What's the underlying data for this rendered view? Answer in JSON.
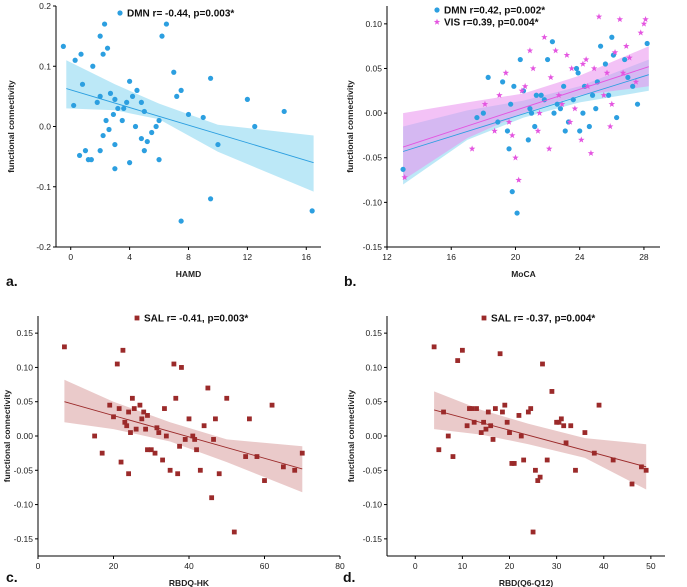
{
  "colors": {
    "dmn": "#2c9fe0",
    "dmn_band": "#8fd8f2",
    "vis": "#e455e0",
    "vis_band": "#ea8fee",
    "sal": "#9b2a2a",
    "sal_band": "#dca7a7"
  },
  "chart_data": [
    {
      "type": "scatter",
      "panel_label": "a.",
      "xlabel": "HAMD",
      "ylabel": "functional connectivity",
      "xlim": [
        -1,
        17
      ],
      "ylim": [
        -0.2,
        0.2
      ],
      "xticks": [
        0,
        4,
        8,
        12,
        16
      ],
      "yticks": [
        -0.2,
        -0.1,
        0.0,
        0.1,
        0.2
      ],
      "ytick_labels": [
        "-0.2",
        "-0.1",
        "0.0",
        "0.1",
        "0.2"
      ],
      "series": [
        {
          "name": "DMN",
          "legend": "DMN r= -0.44, p=0.003*",
          "marker": "circle",
          "color_key": "dmn",
          "fit": {
            "x": [
              -0.3,
              16.5
            ],
            "y": [
              0.063,
              -0.06
            ]
          },
          "band": {
            "upper": [
              [
                -0.3,
                0.11
              ],
              [
                3,
                0.07
              ],
              [
                6,
                0.038
              ],
              [
                10,
                0.003
              ],
              [
                16.5,
                -0.015
              ]
            ],
            "lower": [
              [
                -0.3,
                0.03
              ],
              [
                3,
                0.027
              ],
              [
                6,
                0.012
              ],
              [
                10,
                -0.042
              ],
              [
                16.5,
                -0.108
              ]
            ]
          },
          "x": [
            -0.5,
            0.3,
            0.7,
            0.8,
            1.5,
            0.2,
            1.0,
            1.4,
            0.6,
            1.2,
            2.0,
            2.2,
            2.3,
            2.0,
            1.8,
            2.5,
            2.7,
            3.0,
            3.2,
            2.4,
            2.6,
            2.9,
            3.5,
            3.8,
            4.0,
            3.0,
            3.6,
            4.2,
            4.5,
            4.8,
            5.0,
            4.4,
            5.5,
            5.8,
            6.0,
            5.2,
            6.2,
            6.5,
            7.0,
            7.2,
            7.5,
            8.0,
            9.0,
            9.5,
            10.0,
            12.0,
            12.5,
            14.5,
            16.4,
            2.2,
            2.0,
            3.0,
            4.0,
            4.8,
            5.0,
            6.0,
            7.5,
            9.5
          ],
          "y": [
            0.133,
            0.11,
            0.12,
            0.07,
            0.1,
            0.035,
            -0.04,
            -0.055,
            -0.048,
            -0.055,
            0.15,
            0.12,
            0.17,
            0.05,
            0.04,
            0.13,
            0.055,
            0.045,
            0.03,
            0.01,
            -0.005,
            0.02,
            0.01,
            0.04,
            0.075,
            -0.03,
            0.03,
            0.05,
            0.06,
            0.04,
            0.025,
            0.0,
            -0.01,
            0.0,
            0.01,
            -0.025,
            0.15,
            0.17,
            0.09,
            0.05,
            0.06,
            0.02,
            0.015,
            0.08,
            -0.03,
            0.045,
            0.0,
            0.025,
            -0.14,
            -0.015,
            -0.04,
            -0.07,
            -0.06,
            -0.02,
            -0.04,
            -0.055,
            -0.157,
            -0.12
          ]
        }
      ]
    },
    {
      "type": "scatter",
      "panel_label": "b.",
      "xlabel": "MoCA",
      "ylabel": "functional connectivity",
      "xlim": [
        12,
        29
      ],
      "ylim": [
        -0.15,
        0.12
      ],
      "xticks": [
        12,
        16,
        20,
        24,
        28
      ],
      "yticks": [
        -0.15,
        -0.1,
        -0.05,
        0.0,
        0.05,
        0.1
      ],
      "ytick_labels": [
        "-0.15",
        "-0.10",
        "-0.05",
        "0.00",
        "0.05",
        "0.10"
      ],
      "series": [
        {
          "name": "DMN",
          "legend": "DMN r=0.42, p=0.002*",
          "marker": "circle",
          "color_key": "dmn",
          "fit": {
            "x": [
              13,
              28.3
            ],
            "y": [
              -0.043,
              0.043
            ]
          },
          "band": {
            "upper": [
              [
                13,
                -0.015
              ],
              [
                17,
                0.003
              ],
              [
                20.5,
                0.014
              ],
              [
                24,
                0.03
              ],
              [
                28.3,
                0.06
              ]
            ],
            "lower": [
              [
                13,
                -0.08
              ],
              [
                17,
                -0.03
              ],
              [
                20.5,
                -0.005
              ],
              [
                24,
                0.012
              ],
              [
                28.3,
                0.025
              ]
            ]
          },
          "x": [
            13.0,
            17.6,
            18.0,
            18.3,
            18.9,
            19.2,
            19.5,
            19.7,
            19.8,
            20.1,
            20.3,
            20.5,
            20.9,
            21.0,
            21.2,
            21.6,
            21.8,
            22.0,
            22.3,
            22.6,
            22.8,
            23.0,
            23.3,
            23.6,
            23.8,
            24.0,
            24.2,
            24.3,
            24.6,
            24.8,
            25.1,
            25.3,
            25.6,
            25.8,
            26.0,
            26.3,
            26.8,
            27.0,
            27.6,
            28.2,
            19.6,
            19.9,
            20.8,
            21.3,
            22.4,
            23.1,
            23.9,
            25.0,
            26.1,
            27.3
          ],
          "y": [
            -0.063,
            -0.005,
            0.0,
            0.04,
            -0.01,
            0.035,
            -0.02,
            0.01,
            -0.088,
            -0.112,
            0.06,
            0.025,
            0.005,
            0.0,
            -0.015,
            0.02,
            0.015,
            0.06,
            0.08,
            0.01,
            0.005,
            0.03,
            -0.01,
            0.015,
            0.05,
            -0.02,
            0.0,
            0.03,
            -0.015,
            0.02,
            0.035,
            0.075,
            0.055,
            0.02,
            0.085,
            -0.005,
            0.06,
            0.04,
            0.01,
            0.078,
            -0.04,
            0.03,
            -0.03,
            0.02,
            0.0,
            -0.02,
            0.045,
            0.005,
            0.065,
            0.03
          ]
        },
        {
          "name": "VIS",
          "legend": "VIS    r=0.39, p=0.004*",
          "marker": "star",
          "color_key": "vis",
          "fit": {
            "x": [
              13,
              28.3
            ],
            "y": [
              -0.038,
              0.052
            ]
          },
          "band": {
            "upper": [
              [
                13,
                0.0
              ],
              [
                17,
                0.012
              ],
              [
                20.5,
                0.022
              ],
              [
                24,
                0.042
              ],
              [
                28.3,
                0.075
              ]
            ],
            "lower": [
              [
                13,
                -0.075
              ],
              [
                17,
                -0.028
              ],
              [
                20.5,
                0.0
              ],
              [
                24,
                0.02
              ],
              [
                28.3,
                0.03
              ]
            ]
          },
          "x": [
            13.1,
            17.3,
            18.1,
            18.7,
            19.0,
            19.4,
            19.6,
            20.0,
            20.2,
            20.6,
            20.9,
            21.1,
            21.5,
            21.8,
            22.1,
            22.5,
            22.7,
            22.9,
            23.2,
            23.5,
            23.7,
            24.1,
            24.4,
            24.5,
            24.7,
            24.9,
            25.2,
            25.5,
            25.7,
            26.0,
            26.2,
            26.5,
            26.9,
            27.1,
            27.5,
            27.8,
            28.0,
            28.1,
            19.8,
            20.4,
            21.4,
            22.2,
            23.4,
            24.2,
            25.9,
            26.7
          ],
          "y": [
            -0.072,
            -0.04,
            0.01,
            -0.02,
            0.02,
            0.045,
            -0.01,
            -0.05,
            -0.075,
            0.03,
            0.07,
            0.05,
            0.0,
            0.085,
            -0.04,
            0.07,
            0.02,
            0.01,
            0.065,
            0.05,
            0.005,
            -0.03,
            0.06,
            0.03,
            -0.045,
            0.05,
            0.108,
            0.02,
            0.045,
            0.01,
            0.068,
            0.105,
            0.075,
            0.062,
            0.035,
            0.09,
            0.1,
            0.105,
            -0.025,
            0.025,
            -0.02,
            0.04,
            -0.01,
            0.055,
            -0.015,
            0.045
          ]
        }
      ]
    },
    {
      "type": "scatter",
      "panel_label": "c.",
      "xlabel": "RBDQ-HK",
      "ylabel": "functional connectivity",
      "xlim": [
        0,
        80
      ],
      "ylim": [
        -0.175,
        0.175
      ],
      "xticks": [
        0,
        20,
        40,
        60,
        80
      ],
      "yticks": [
        -0.15,
        -0.1,
        -0.05,
        0.0,
        0.05,
        0.1,
        0.15
      ],
      "ytick_labels": [
        "-0.15",
        "-0.10",
        "-0.05",
        "0.00",
        "0.05",
        "0.10",
        "0.15"
      ],
      "series": [
        {
          "name": "SAL",
          "legend": "SAL r= -0.41, p=0.003*",
          "marker": "square",
          "color_key": "sal",
          "fit": {
            "x": [
              7,
              70
            ],
            "y": [
              0.05,
              -0.048
            ]
          },
          "band": {
            "upper": [
              [
                7,
                0.082
              ],
              [
                20,
                0.05
              ],
              [
                35,
                0.02
              ],
              [
                50,
                -0.005
              ],
              [
                70,
                -0.015
              ]
            ],
            "lower": [
              [
                7,
                0.02
              ],
              [
                20,
                0.01
              ],
              [
                35,
                -0.008
              ],
              [
                50,
                -0.038
              ],
              [
                70,
                -0.082
              ]
            ]
          },
          "x": [
            7.0,
            15.0,
            17.0,
            19.0,
            20.0,
            21.0,
            21.5,
            22.0,
            22.5,
            23.0,
            23.5,
            24.0,
            24.5,
            25.0,
            25.5,
            26.0,
            27.0,
            27.5,
            28.0,
            28.5,
            29.0,
            30.0,
            31.0,
            31.5,
            32.0,
            33.0,
            34.0,
            35.0,
            36.0,
            36.5,
            37.0,
            37.5,
            38.0,
            39.0,
            40.0,
            41.0,
            42.0,
            43.0,
            44.0,
            45.0,
            46.0,
            46.5,
            47.0,
            48.0,
            50.0,
            52.0,
            55.0,
            56.0,
            58.0,
            60.0,
            62.0,
            65.0,
            68.0,
            70.0,
            24.0,
            29.0,
            33.5,
            41.5
          ],
          "y": [
            0.13,
            0.0,
            -0.025,
            0.045,
            0.028,
            0.105,
            0.04,
            -0.038,
            0.125,
            0.02,
            0.015,
            0.035,
            0.005,
            0.055,
            0.04,
            0.01,
            0.045,
            0.025,
            0.035,
            0.01,
            0.03,
            -0.02,
            -0.025,
            0.012,
            0.005,
            -0.035,
            0.0,
            -0.05,
            0.105,
            0.055,
            -0.055,
            -0.015,
            0.1,
            -0.005,
            0.025,
            0.0,
            -0.02,
            -0.05,
            0.015,
            0.07,
            -0.09,
            -0.005,
            0.025,
            -0.055,
            0.055,
            -0.14,
            -0.03,
            0.025,
            -0.03,
            -0.065,
            0.045,
            -0.045,
            -0.05,
            -0.025,
            -0.055,
            -0.02,
            0.04,
            -0.005
          ]
        }
      ]
    },
    {
      "type": "scatter",
      "panel_label": "d.",
      "xlabel": "RBD(Q6-Q12)",
      "ylabel": "functional connectivity",
      "xlim": [
        -6,
        53
      ],
      "ylim": [
        -0.175,
        0.175
      ],
      "xticks": [
        0,
        10,
        20,
        30,
        40,
        50
      ],
      "yticks": [
        -0.15,
        -0.1,
        -0.05,
        0.0,
        0.05,
        0.1,
        0.15
      ],
      "ytick_labels": [
        "-0.15",
        "-0.10",
        "-0.05",
        "0.00",
        "0.05",
        "0.10",
        "0.15"
      ],
      "series": [
        {
          "name": "SAL",
          "legend": "SAL r= -0.37, p=0.004*",
          "marker": "square",
          "color_key": "sal",
          "fit": {
            "x": [
              4,
              49
            ],
            "y": [
              0.038,
              -0.045
            ]
          },
          "band": {
            "upper": [
              [
                4,
                0.065
              ],
              [
                14,
                0.038
              ],
              [
                24,
                0.018
              ],
              [
                36,
                -0.003
              ],
              [
                49,
                -0.012
              ]
            ],
            "lower": [
              [
                4,
                0.01
              ],
              [
                14,
                0.002
              ],
              [
                24,
                -0.012
              ],
              [
                36,
                -0.032
              ],
              [
                49,
                -0.078
              ]
            ]
          },
          "x": [
            4.0,
            5.0,
            6.0,
            7.0,
            8.0,
            9.0,
            10.0,
            11.0,
            12.0,
            12.5,
            13.0,
            14.0,
            14.5,
            15.0,
            15.5,
            16.0,
            16.5,
            17.0,
            18.0,
            18.5,
            19.0,
            19.5,
            20.0,
            21.0,
            22.0,
            22.5,
            23.0,
            24.0,
            24.5,
            25.0,
            25.5,
            26.0,
            27.0,
            28.0,
            29.0,
            30.0,
            30.5,
            31.0,
            32.0,
            33.0,
            34.0,
            36.0,
            38.0,
            39.0,
            42.0,
            46.0,
            48.0,
            49.0,
            11.5,
            20.5,
            26.5,
            31.5
          ],
          "y": [
            0.13,
            -0.02,
            0.035,
            0.0,
            -0.03,
            0.11,
            0.125,
            0.015,
            0.04,
            0.02,
            0.04,
            0.005,
            0.02,
            0.01,
            0.035,
            0.015,
            -0.005,
            0.04,
            0.12,
            0.035,
            0.045,
            0.02,
            0.005,
            -0.04,
            0.03,
            0.0,
            -0.035,
            0.035,
            0.04,
            -0.14,
            -0.05,
            -0.065,
            0.105,
            -0.035,
            0.065,
            0.02,
            0.02,
            0.025,
            -0.01,
            0.015,
            -0.05,
            0.005,
            -0.025,
            0.045,
            -0.035,
            -0.07,
            -0.045,
            -0.05,
            0.04,
            -0.04,
            -0.06,
            0.015
          ]
        }
      ]
    }
  ]
}
